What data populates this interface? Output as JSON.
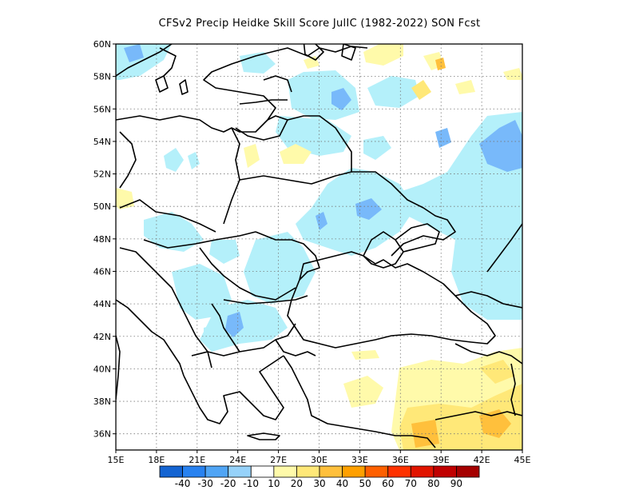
{
  "title": "CFSv2 Precip Heidke Skill Score JulIC (1982-2022) SON Fcst",
  "map": {
    "lon_range": [
      15,
      45
    ],
    "lat_range": [
      35,
      60
    ],
    "lon_ticks": [
      {
        "value": 15,
        "label": "15E"
      },
      {
        "value": 18,
        "label": "18E"
      },
      {
        "value": 21,
        "label": "21E"
      },
      {
        "value": 24,
        "label": "24E"
      },
      {
        "value": 27,
        "label": "27E"
      },
      {
        "value": 30,
        "label": "30E"
      },
      {
        "value": 33,
        "label": "33E"
      },
      {
        "value": 36,
        "label": "36E"
      },
      {
        "value": 39,
        "label": "39E"
      },
      {
        "value": 42,
        "label": "42E"
      },
      {
        "value": 45,
        "label": "45E"
      }
    ],
    "lat_ticks": [
      {
        "value": 36,
        "label": "36N"
      },
      {
        "value": 38,
        "label": "38N"
      },
      {
        "value": 40,
        "label": "40N"
      },
      {
        "value": 42,
        "label": "42N"
      },
      {
        "value": 44,
        "label": "44N"
      },
      {
        "value": 46,
        "label": "46N"
      },
      {
        "value": 48,
        "label": "48N"
      },
      {
        "value": 50,
        "label": "50N"
      },
      {
        "value": 52,
        "label": "52N"
      },
      {
        "value": 54,
        "label": "54N"
      },
      {
        "value": 56,
        "label": "56N"
      },
      {
        "value": 58,
        "label": "58N"
      },
      {
        "value": 60,
        "label": "60N"
      }
    ]
  },
  "colorbar": {
    "colors": [
      "#1464d2",
      "#2882f0",
      "#50a5f5",
      "#96d2fa",
      "#ffffff",
      "#fffaaa",
      "#ffe878",
      "#ffc03c",
      "#ffa000",
      "#ff6000",
      "#ff3200",
      "#e11400",
      "#c00000",
      "#a50000"
    ],
    "labels": [
      "-40",
      "-30",
      "-20",
      "-10",
      "10",
      "20",
      "30",
      "40",
      "50",
      "60",
      "70",
      "80",
      "90"
    ]
  },
  "colors": {
    "light_blue": "#b4f0fa",
    "mid_blue": "#78b9fa",
    "pale_yellow": "#fffaaa",
    "yellow": "#ffe878",
    "orange": "#ffc03c"
  }
}
